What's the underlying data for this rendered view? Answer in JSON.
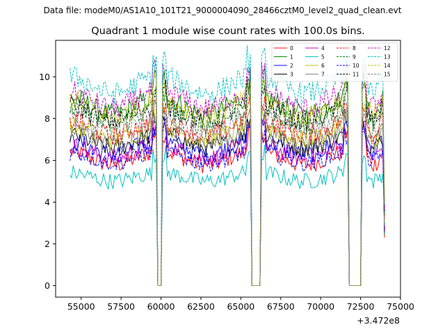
{
  "figure": {
    "suptitle": "Data file: modeM0/AS1A10_101T21_9000004090_28466cztM0_level2_quad_clean.evt",
    "title": "Quadrant 1 module wise count rates with 100.0s bins.",
    "offset_label": "+3.472e8"
  },
  "chart_data": {
    "type": "line",
    "title": "Quadrant 1 module wise count rates with 100.0s bins.",
    "xlabel": "",
    "ylabel": "",
    "x_offset": 347200000,
    "xlim": [
      53400,
      75000
    ],
    "ylim": [
      -0.55,
      11.75
    ],
    "xticks": [
      55000,
      57500,
      60000,
      62500,
      65000,
      67500,
      70000,
      72500,
      75000
    ],
    "xtick_labels": [
      "55000",
      "57500",
      "60000",
      "62500",
      "65000",
      "67500",
      "70000",
      "72500",
      "75000"
    ],
    "yticks": [
      0,
      2,
      4,
      6,
      8,
      10
    ],
    "ytick_labels": [
      "0",
      "2",
      "4",
      "6",
      "8",
      "10"
    ],
    "bin_seconds": 100,
    "x_range": [
      54300,
      74000
    ],
    "gaps": [
      [
        59800,
        60000
      ],
      [
        65700,
        66200
      ],
      [
        71800,
        72500
      ]
    ],
    "legend_location": "top-right",
    "series": [
      {
        "name": "0",
        "color": "#ff0000",
        "dash": "solid",
        "mean": 6.4,
        "dip": 5.8
      },
      {
        "name": "1",
        "color": "#008000",
        "dash": "solid",
        "mean": 9.0,
        "dip": 8.2
      },
      {
        "name": "2",
        "color": "#0000ff",
        "dash": "solid",
        "mean": 6.9,
        "dip": 6.3
      },
      {
        "name": "3",
        "color": "#000000",
        "dash": "solid",
        "mean": 7.2,
        "dip": 6.6
      },
      {
        "name": "4",
        "color": "#bf00bf",
        "dash": "solid",
        "mean": 6.7,
        "dip": 6.1
      },
      {
        "name": "5",
        "color": "#00bfbf",
        "dash": "solid",
        "mean": 5.4,
        "dip": 5.0
      },
      {
        "name": "6",
        "color": "#bfbf00",
        "dash": "solid",
        "mean": 7.6,
        "dip": 7.0
      },
      {
        "name": "7",
        "color": "#808080",
        "dash": "solid",
        "mean": 7.4,
        "dip": 6.8
      },
      {
        "name": "8",
        "color": "#ff0000",
        "dash": "dashed",
        "mean": 7.9,
        "dip": 7.2
      },
      {
        "name": "9",
        "color": "#008000",
        "dash": "dashed",
        "mean": 8.5,
        "dip": 7.7
      },
      {
        "name": "10",
        "color": "#0000ff",
        "dash": "dashed",
        "mean": 6.4,
        "dip": 5.9
      },
      {
        "name": "11",
        "color": "#000000",
        "dash": "dashed",
        "mean": 8.6,
        "dip": 7.9
      },
      {
        "name": "12",
        "color": "#bf00bf",
        "dash": "dashed",
        "mean": 9.3,
        "dip": 8.5
      },
      {
        "name": "13",
        "color": "#00bfbf",
        "dash": "dashed",
        "mean": 10.0,
        "dip": 9.2
      },
      {
        "name": "14",
        "color": "#bfbf00",
        "dash": "dashed",
        "mean": 8.9,
        "dip": 8.1
      },
      {
        "name": "15",
        "color": "#808080",
        "dash": "dashed",
        "mean": 8.0,
        "dip": 7.4
      }
    ]
  }
}
